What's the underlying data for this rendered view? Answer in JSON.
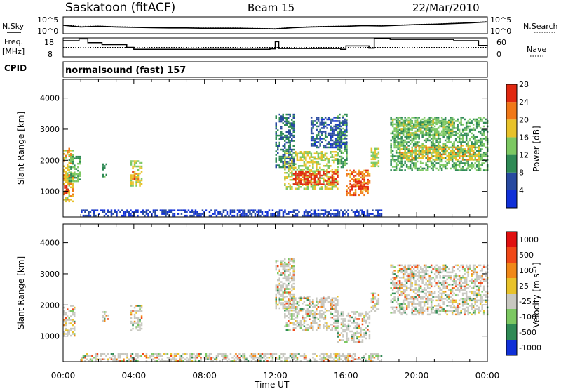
{
  "header": {
    "station": "Saskatoon (fitACF)",
    "beam": "Beam 15",
    "date": "22/Mar/2010"
  },
  "left_labels": {
    "nsky": "N.Sky",
    "freq1": "Freq.",
    "freq2": "[MHz]",
    "cpid": "CPID"
  },
  "right_labels": {
    "nsearch": "N.Search",
    "nave": "Nave"
  },
  "mode_text": "normalsound (fast) 157",
  "colorbars": {
    "power": {
      "label": "Power [dB]",
      "ticks": [
        "4",
        "8",
        "12",
        "16",
        "20",
        "24",
        "28"
      ],
      "colors": [
        "#1030d8",
        "#284aa0",
        "#2f8a55",
        "#7cc862",
        "#e8c22a",
        "#f07818",
        "#e02810"
      ]
    },
    "velocity": {
      "label": "Velocity [m s⁻¹]",
      "ticks": [
        "1000",
        "500",
        "100",
        "25",
        "-25",
        "-100",
        "-500",
        "-1000"
      ],
      "colors": [
        "#1030d8",
        "#2f8a55",
        "#7cc862",
        "#c8c8c0",
        "#e8c22a",
        "#f08818",
        "#f04818",
        "#e01010"
      ]
    }
  },
  "chart_data": [
    {
      "type": "line",
      "title": "N.Sky / N.Search",
      "y_ticks": [
        "10^5",
        "10^0"
      ],
      "ylim_log10": [
        0,
        5
      ],
      "x": [
        0,
        1,
        2,
        3,
        4,
        5,
        6,
        7,
        8,
        9,
        10,
        11,
        12,
        13,
        14,
        15,
        16,
        17,
        18,
        19,
        20,
        21,
        22,
        23,
        24
      ],
      "series": [
        {
          "name": "N.Sky",
          "values": [
            2.5,
            2.0,
            2.2,
            2.0,
            1.9,
            1.8,
            1.7,
            1.7,
            1.6,
            1.6,
            1.6,
            1.5,
            1.4,
            1.8,
            2.0,
            2.1,
            2.2,
            2.4,
            2.3,
            2.5,
            2.7,
            2.8,
            3.0,
            3.2,
            3.5
          ]
        },
        {
          "name": "N.Search",
          "values": [
            2.6,
            2.2,
            2.3,
            2.1,
            2.0,
            1.9,
            1.8,
            1.8,
            1.7,
            1.7,
            1.7,
            1.6,
            1.5,
            1.9,
            2.1,
            2.2,
            2.3,
            2.5,
            2.4,
            2.6,
            2.8,
            2.9,
            3.1,
            3.3,
            3.6
          ]
        }
      ]
    },
    {
      "type": "line",
      "title": "Freq / Nave",
      "y_left_ticks": [
        "18",
        "8"
      ],
      "y_right_ticks": [
        "60",
        "0"
      ],
      "ylim": [
        8,
        18
      ],
      "x": [
        0,
        0.9,
        1.4,
        2.2,
        3.6,
        4.0,
        6.5,
        11.7,
        12.0,
        12.2,
        15.7,
        16.0,
        17.3,
        17.6,
        18.5,
        22.1,
        23.5,
        24
      ],
      "series": [
        {
          "name": "Freq",
          "values": [
            16.5,
            17.5,
            15.5,
            14.5,
            13.0,
            12.0,
            12.0,
            12.2,
            16.0,
            12.4,
            12.0,
            13.8,
            12.6,
            17.6,
            17.2,
            16.5,
            14.0,
            13.5
          ]
        },
        {
          "name": "Nave",
          "values": [
            13.0,
            13.0,
            13.0,
            13.0,
            13.0,
            13.0,
            13.0,
            13.0,
            13.0,
            13.0,
            13.0,
            13.0,
            13.0,
            13.0,
            13.0,
            13.0,
            13.0,
            13.0
          ]
        }
      ]
    },
    {
      "type": "heatmap",
      "title": "Power",
      "ylabel": "Slant Range [km]",
      "xlim": [
        0,
        24
      ],
      "ylim": [
        180,
        4600
      ],
      "y_ticks": [
        1000,
        2000,
        3000,
        4000
      ],
      "regions": [
        {
          "t0": 0.0,
          "t1": 0.5,
          "r0": 700,
          "r1": 2400,
          "v": 20
        },
        {
          "t0": 0.05,
          "t1": 0.3,
          "r0": 950,
          "r1": 1200,
          "v": 28
        },
        {
          "t0": 0.3,
          "t1": 0.9,
          "r0": 1300,
          "r1": 2200,
          "v": 14
        },
        {
          "t0": 2.2,
          "t1": 2.4,
          "r0": 1500,
          "r1": 1900,
          "v": 12
        },
        {
          "t0": 3.8,
          "t1": 4.4,
          "r0": 1200,
          "r1": 2000,
          "v": 18
        },
        {
          "t0": 3.9,
          "t1": 4.2,
          "r0": 1400,
          "r1": 1650,
          "v": 24
        },
        {
          "t0": 12.0,
          "t1": 13.0,
          "r0": 1800,
          "r1": 3500,
          "v": 10
        },
        {
          "t0": 12.5,
          "t1": 15.5,
          "r0": 1100,
          "r1": 2300,
          "v": 18
        },
        {
          "t0": 13.0,
          "t1": 15.5,
          "r0": 1250,
          "r1": 1650,
          "v": 28
        },
        {
          "t0": 15.5,
          "t1": 16.0,
          "r0": 1800,
          "r1": 3500,
          "v": 14
        },
        {
          "t0": 16.0,
          "t1": 17.3,
          "r0": 900,
          "r1": 1700,
          "v": 24
        },
        {
          "t0": 16.2,
          "t1": 17.2,
          "r0": 1100,
          "r1": 1400,
          "v": 28
        },
        {
          "t0": 14.0,
          "t1": 16.0,
          "r0": 2400,
          "r1": 3400,
          "v": 8
        },
        {
          "t0": 17.4,
          "t1": 17.8,
          "r0": 1800,
          "r1": 2400,
          "v": 18
        },
        {
          "t0": 18.5,
          "t1": 24.0,
          "r0": 1700,
          "r1": 3400,
          "v": 14
        },
        {
          "t0": 19.0,
          "t1": 23.5,
          "r0": 2000,
          "r1": 2500,
          "v": 20
        },
        {
          "t0": 18.6,
          "t1": 22.0,
          "r0": 2800,
          "r1": 3300,
          "v": 16
        },
        {
          "t0": 1.0,
          "t1": 18.0,
          "r0": 200,
          "r1": 420,
          "v": 6
        }
      ]
    },
    {
      "type": "heatmap",
      "title": "Velocity",
      "ylabel": "Slant Range [km]",
      "xlabel": "Time UT",
      "xlim": [
        0,
        24
      ],
      "ylim": [
        180,
        4600
      ],
      "y_ticks": [
        1000,
        2000,
        3000,
        4000
      ],
      "x_ticks": [
        "00:00",
        "04:00",
        "08:00",
        "12:00",
        "16:00",
        "20:00",
        "00:00"
      ],
      "regions": [
        {
          "t0": 0.0,
          "t1": 0.6,
          "r0": 1000,
          "r1": 2000,
          "v": 0
        },
        {
          "t0": 3.8,
          "t1": 4.4,
          "r0": 1200,
          "r1": 2000,
          "v": -50
        },
        {
          "t0": 2.2,
          "t1": 2.5,
          "r0": 1400,
          "r1": 1800,
          "v": -50
        },
        {
          "t0": 12.0,
          "t1": 13.0,
          "r0": 1900,
          "r1": 3500,
          "v": 0
        },
        {
          "t0": 12.5,
          "t1": 15.5,
          "r0": 1200,
          "r1": 2300,
          "v": 0
        },
        {
          "t0": 15.5,
          "t1": 17.3,
          "r0": 800,
          "r1": 1800,
          "v": 0
        },
        {
          "t0": 17.4,
          "t1": 17.8,
          "r0": 1800,
          "r1": 2400,
          "v": 0
        },
        {
          "t0": 18.5,
          "t1": 24.0,
          "r0": 1700,
          "r1": 3300,
          "v": 0
        },
        {
          "t0": 1.0,
          "t1": 18.0,
          "r0": 200,
          "r1": 450,
          "v": 150
        }
      ]
    }
  ]
}
